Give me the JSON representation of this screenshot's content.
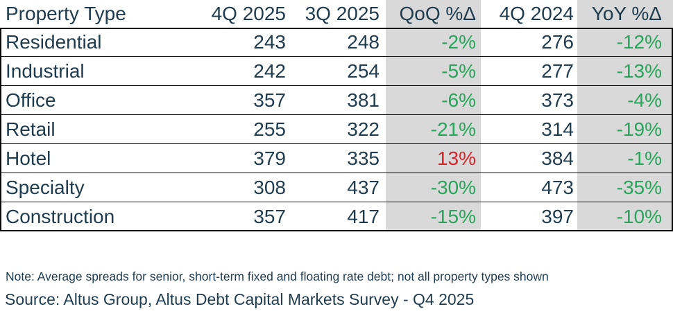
{
  "chart_data": {
    "type": "table",
    "columns": [
      "Property Type",
      "4Q 2025",
      "3Q 2025",
      "QoQ %Δ",
      "4Q 2024",
      "YoY %Δ"
    ],
    "rows": [
      [
        "Residential",
        243,
        248,
        "-2%",
        276,
        "-12%"
      ],
      [
        "Industrial",
        242,
        254,
        "-5%",
        277,
        "-13%"
      ],
      [
        "Office",
        357,
        381,
        "-6%",
        373,
        "-4%"
      ],
      [
        "Retail",
        255,
        322,
        "-21%",
        314,
        "-19%"
      ],
      [
        "Hotel",
        379,
        335,
        "13%",
        384,
        "-1%"
      ],
      [
        "Specialty",
        308,
        437,
        "-30%",
        473,
        "-35%"
      ],
      [
        "Construction",
        357,
        417,
        "-15%",
        397,
        "-10%"
      ]
    ],
    "shaded_columns": [
      "QoQ %Δ",
      "YoY %Δ"
    ],
    "note": "Note: Average spreads for senior, short-term fixed and floating rate debt; not all property types shown",
    "source": "Source: Altus Group, Altus Debt Capital Markets Survey - Q4 2025"
  },
  "table": {
    "columns": [
      "Property Type",
      "4Q 2025",
      "3Q 2025",
      "QoQ %Δ",
      "4Q 2024",
      "YoY %Δ"
    ],
    "rows": [
      {
        "label": "Residential",
        "q4_2025": "243",
        "q3_2025": "248",
        "qoq": "-2%",
        "qoq_dir": "down",
        "q4_2024": "276",
        "yoy": "-12%",
        "yoy_dir": "down"
      },
      {
        "label": "Industrial",
        "q4_2025": "242",
        "q3_2025": "254",
        "qoq": "-5%",
        "qoq_dir": "down",
        "q4_2024": "277",
        "yoy": "-13%",
        "yoy_dir": "down"
      },
      {
        "label": "Office",
        "q4_2025": "357",
        "q3_2025": "381",
        "qoq": "-6%",
        "qoq_dir": "down",
        "q4_2024": "373",
        "yoy": "-4%",
        "yoy_dir": "down"
      },
      {
        "label": "Retail",
        "q4_2025": "255",
        "q3_2025": "322",
        "qoq": "-21%",
        "qoq_dir": "down",
        "q4_2024": "314",
        "yoy": "-19%",
        "yoy_dir": "down"
      },
      {
        "label": "Hotel",
        "q4_2025": "379",
        "q3_2025": "335",
        "qoq": "13%",
        "qoq_dir": "up",
        "q4_2024": "384",
        "yoy": "-1%",
        "yoy_dir": "down"
      },
      {
        "label": "Specialty",
        "q4_2025": "308",
        "q3_2025": "437",
        "qoq": "-30%",
        "qoq_dir": "down",
        "q4_2024": "473",
        "yoy": "-35%",
        "yoy_dir": "down"
      },
      {
        "label": "Construction",
        "q4_2025": "357",
        "q3_2025": "417",
        "qoq": "-15%",
        "qoq_dir": "down",
        "q4_2024": "397",
        "yoy": "-10%",
        "yoy_dir": "down"
      }
    ]
  },
  "footer": {
    "note": "Note: Average spreads for senior, short-term fixed and floating rate debt; not all property types shown",
    "source": "Source: Altus Group, Altus Debt Capital Markets Survey - Q4 2025"
  },
  "colors": {
    "text_navy": "#1e3c4e",
    "delta_positive_red": "#d7232a",
    "delta_negative_green": "#27a55a",
    "shaded_column_gray": "#d9d9d9",
    "border_black": "#0a0a0a"
  }
}
